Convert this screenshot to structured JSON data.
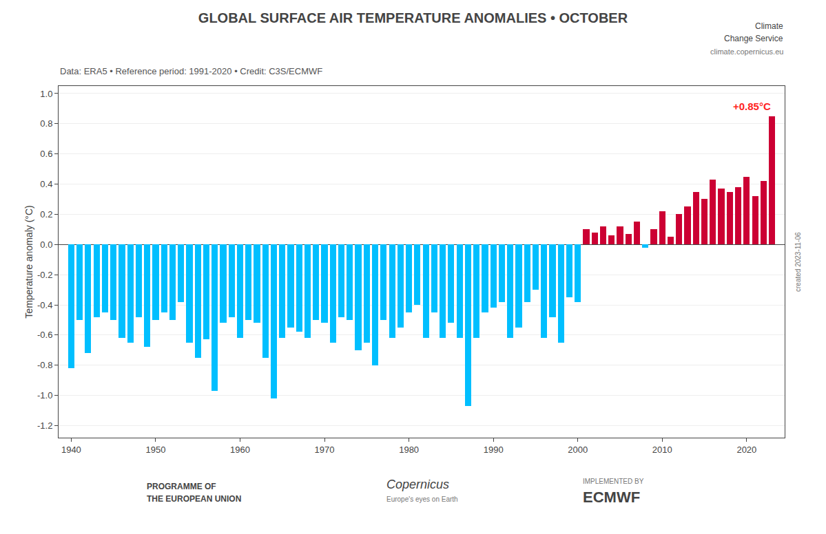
{
  "chart_data": {
    "type": "bar",
    "title": "GLOBAL SURFACE AIR TEMPERATURE ANOMALIES • OCTOBER",
    "subtitle": "Data: ERA5 • Reference period: 1991-2020 • Credit: C3S/ECMWF",
    "ylabel": "Temperature anomaly (°C)",
    "x": [
      1940,
      1941,
      1942,
      1943,
      1944,
      1945,
      1946,
      1947,
      1948,
      1949,
      1950,
      1951,
      1952,
      1953,
      1954,
      1955,
      1956,
      1957,
      1958,
      1959,
      1960,
      1961,
      1962,
      1963,
      1964,
      1965,
      1966,
      1967,
      1968,
      1969,
      1970,
      1971,
      1972,
      1973,
      1974,
      1975,
      1976,
      1977,
      1978,
      1979,
      1980,
      1981,
      1982,
      1983,
      1984,
      1985,
      1986,
      1987,
      1988,
      1989,
      1990,
      1991,
      1992,
      1993,
      1994,
      1995,
      1996,
      1997,
      1998,
      1999,
      2000,
      2001,
      2002,
      2003,
      2004,
      2005,
      2006,
      2007,
      2008,
      2009,
      2010,
      2011,
      2012,
      2013,
      2014,
      2015,
      2016,
      2017,
      2018,
      2019,
      2020,
      2021,
      2022,
      2023
    ],
    "values": [
      -0.82,
      -0.5,
      -0.72,
      -0.48,
      -0.45,
      -0.5,
      -0.62,
      -0.65,
      -0.48,
      -0.68,
      -0.5,
      -0.45,
      -0.5,
      -0.38,
      -0.65,
      -0.75,
      -0.63,
      -0.97,
      -0.52,
      -0.48,
      -0.62,
      -0.5,
      -0.52,
      -0.75,
      -1.02,
      -0.62,
      -0.55,
      -0.58,
      -0.62,
      -0.5,
      -0.52,
      -0.65,
      -0.48,
      -0.5,
      -0.7,
      -0.65,
      -0.8,
      -0.5,
      -0.62,
      -0.55,
      -0.45,
      -0.4,
      -0.62,
      -0.45,
      -0.62,
      -0.52,
      -0.62,
      -1.07,
      -0.62,
      -0.45,
      -0.42,
      -0.38,
      -0.62,
      -0.55,
      -0.38,
      -0.3,
      -0.62,
      -0.48,
      -0.65,
      -0.35,
      -0.38,
      0.1,
      0.08,
      0.12,
      0.06,
      0.12,
      0.07,
      0.15,
      -0.02,
      0.1,
      0.22,
      0.05,
      0.2,
      0.25,
      0.35,
      0.3,
      0.43,
      0.37,
      0.35,
      0.38,
      0.45,
      0.32,
      0.42,
      0.85
    ],
    "colors": [
      "#00BFFF",
      "#00BFFF",
      "#00BFFF",
      "#00BFFF",
      "#00BFFF",
      "#00BFFF",
      "#00BFFF",
      "#00BFFF",
      "#00BFFF",
      "#00BFFF",
      "#00BFFF",
      "#00BFFF",
      "#00BFFF",
      "#00BFFF",
      "#00BFFF",
      "#00BFFF",
      "#00BFFF",
      "#00BFFF",
      "#00BFFF",
      "#00BFFF",
      "#00BFFF",
      "#00BFFF",
      "#00BFFF",
      "#00BFFF",
      "#00BFFF",
      "#00BFFF",
      "#00BFFF",
      "#00BFFF",
      "#00BFFF",
      "#00BFFF",
      "#00BFFF",
      "#00BFFF",
      "#00BFFF",
      "#00BFFF",
      "#00BFFF",
      "#00BFFF",
      "#00BFFF",
      "#00BFFF",
      "#00BFFF",
      "#00BFFF",
      "#00BFFF",
      "#00BFFF",
      "#00BFFF",
      "#00BFFF",
      "#00BFFF",
      "#00BFFF",
      "#00BFFF",
      "#00BFFF",
      "#00BFFF",
      "#00BFFF",
      "#00BFFF",
      "#00BFFF",
      "#00BFFF",
      "#00BFFF",
      "#00BFFF",
      "#00BFFF",
      "#00BFFF",
      "#00BFFF",
      "#00BFFF",
      "#00BFFF",
      "#00BFFF",
      "#CC0033",
      "#CC0033",
      "#CC0033",
      "#CC0033",
      "#CC0033",
      "#CC0033",
      "#CC0033",
      "#00BFFF",
      "#CC0033",
      "#CC0033",
      "#CC0033",
      "#CC0033",
      "#CC0033",
      "#CC0033",
      "#CC0033",
      "#CC0033",
      "#CC0033",
      "#CC0033",
      "#CC0033",
      "#CC0033",
      "#CC0033",
      "#CC0033",
      "#CC0033"
    ],
    "xlim": [
      1938.5,
      2024.5
    ],
    "xticks": [
      1940,
      1950,
      1960,
      1970,
      1980,
      1990,
      2000,
      2010,
      2020
    ],
    "ylim": [
      -1.28,
      1.05
    ],
    "yticks": [
      -1.2,
      {
        "value": -1,
        "label": "-1.0"
      },
      -0.8,
      -0.6,
      -0.4,
      -0.2,
      {
        "value": 0,
        "label": "0.0"
      },
      0.2,
      0.4,
      0.6,
      0.8,
      {
        "value": 1,
        "label": "1.0"
      }
    ],
    "grid": "y",
    "annotations": [
      {
        "text": "+0.85°C",
        "x": 2023,
        "color": "#FF2222"
      },
      {
        "text": "created 2023-11-06"
      },
      {
        "text": "Climate"
      },
      {
        "text": "Change Service"
      },
      {
        "text": "climate.copernicus.eu"
      },
      {
        "text": "PROGRAMME OF"
      },
      {
        "text": "THE EUROPEAN UNION"
      },
      {
        "text": "Copernicus"
      },
      {
        "text": "Europe's eyes on Earth"
      },
      {
        "text": "IMPLEMENTED BY"
      },
      {
        "text": "ECMWF"
      }
    ]
  }
}
